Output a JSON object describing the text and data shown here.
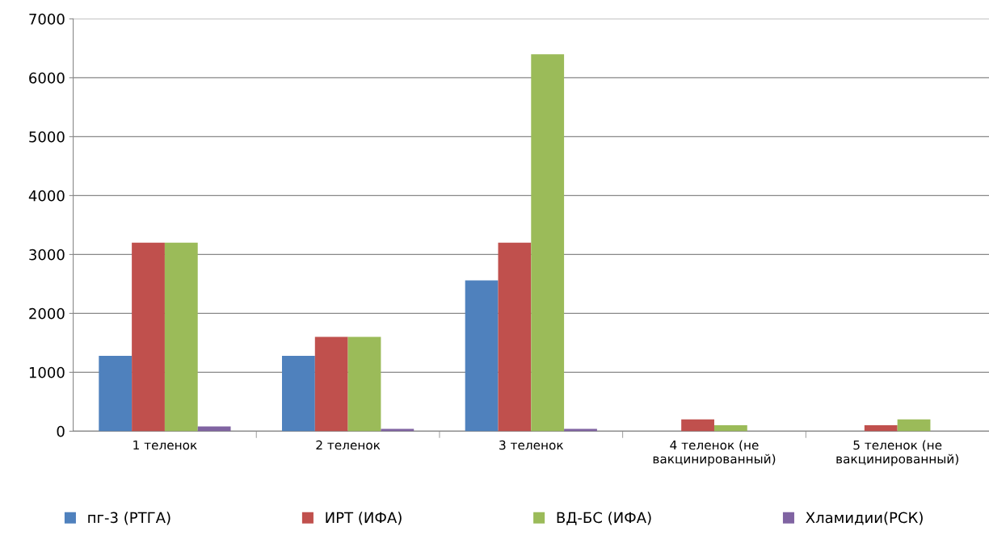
{
  "chart_data": {
    "type": "bar",
    "categories": [
      "1 теленок",
      "2 теленок",
      "3 теленок",
      "4 теленок (не\nвакцинированный)",
      "5 теленок (не\nвакцинированный)"
    ],
    "series": [
      {
        "name": "пг-3 (РТГА)",
        "color": "#4f81bd",
        "values": [
          1280,
          1280,
          2560,
          0,
          0
        ]
      },
      {
        "name": "ИРТ (ИФА)",
        "color": "#c0504d",
        "values": [
          3200,
          1600,
          3200,
          200,
          100
        ]
      },
      {
        "name": "ВД-БС (ИФА)",
        "color": "#9bbb59",
        "values": [
          3200,
          1600,
          6400,
          100,
          200
        ]
      },
      {
        "name": "Хламидии(РСК)",
        "color": "#8064a2",
        "values": [
          80,
          40,
          40,
          0,
          0
        ]
      }
    ],
    "ylim": [
      0,
      7000
    ],
    "yticks": [
      0,
      1000,
      2000,
      3000,
      4000,
      5000,
      6000,
      7000
    ],
    "grid": "y",
    "legend": "bottom"
  }
}
